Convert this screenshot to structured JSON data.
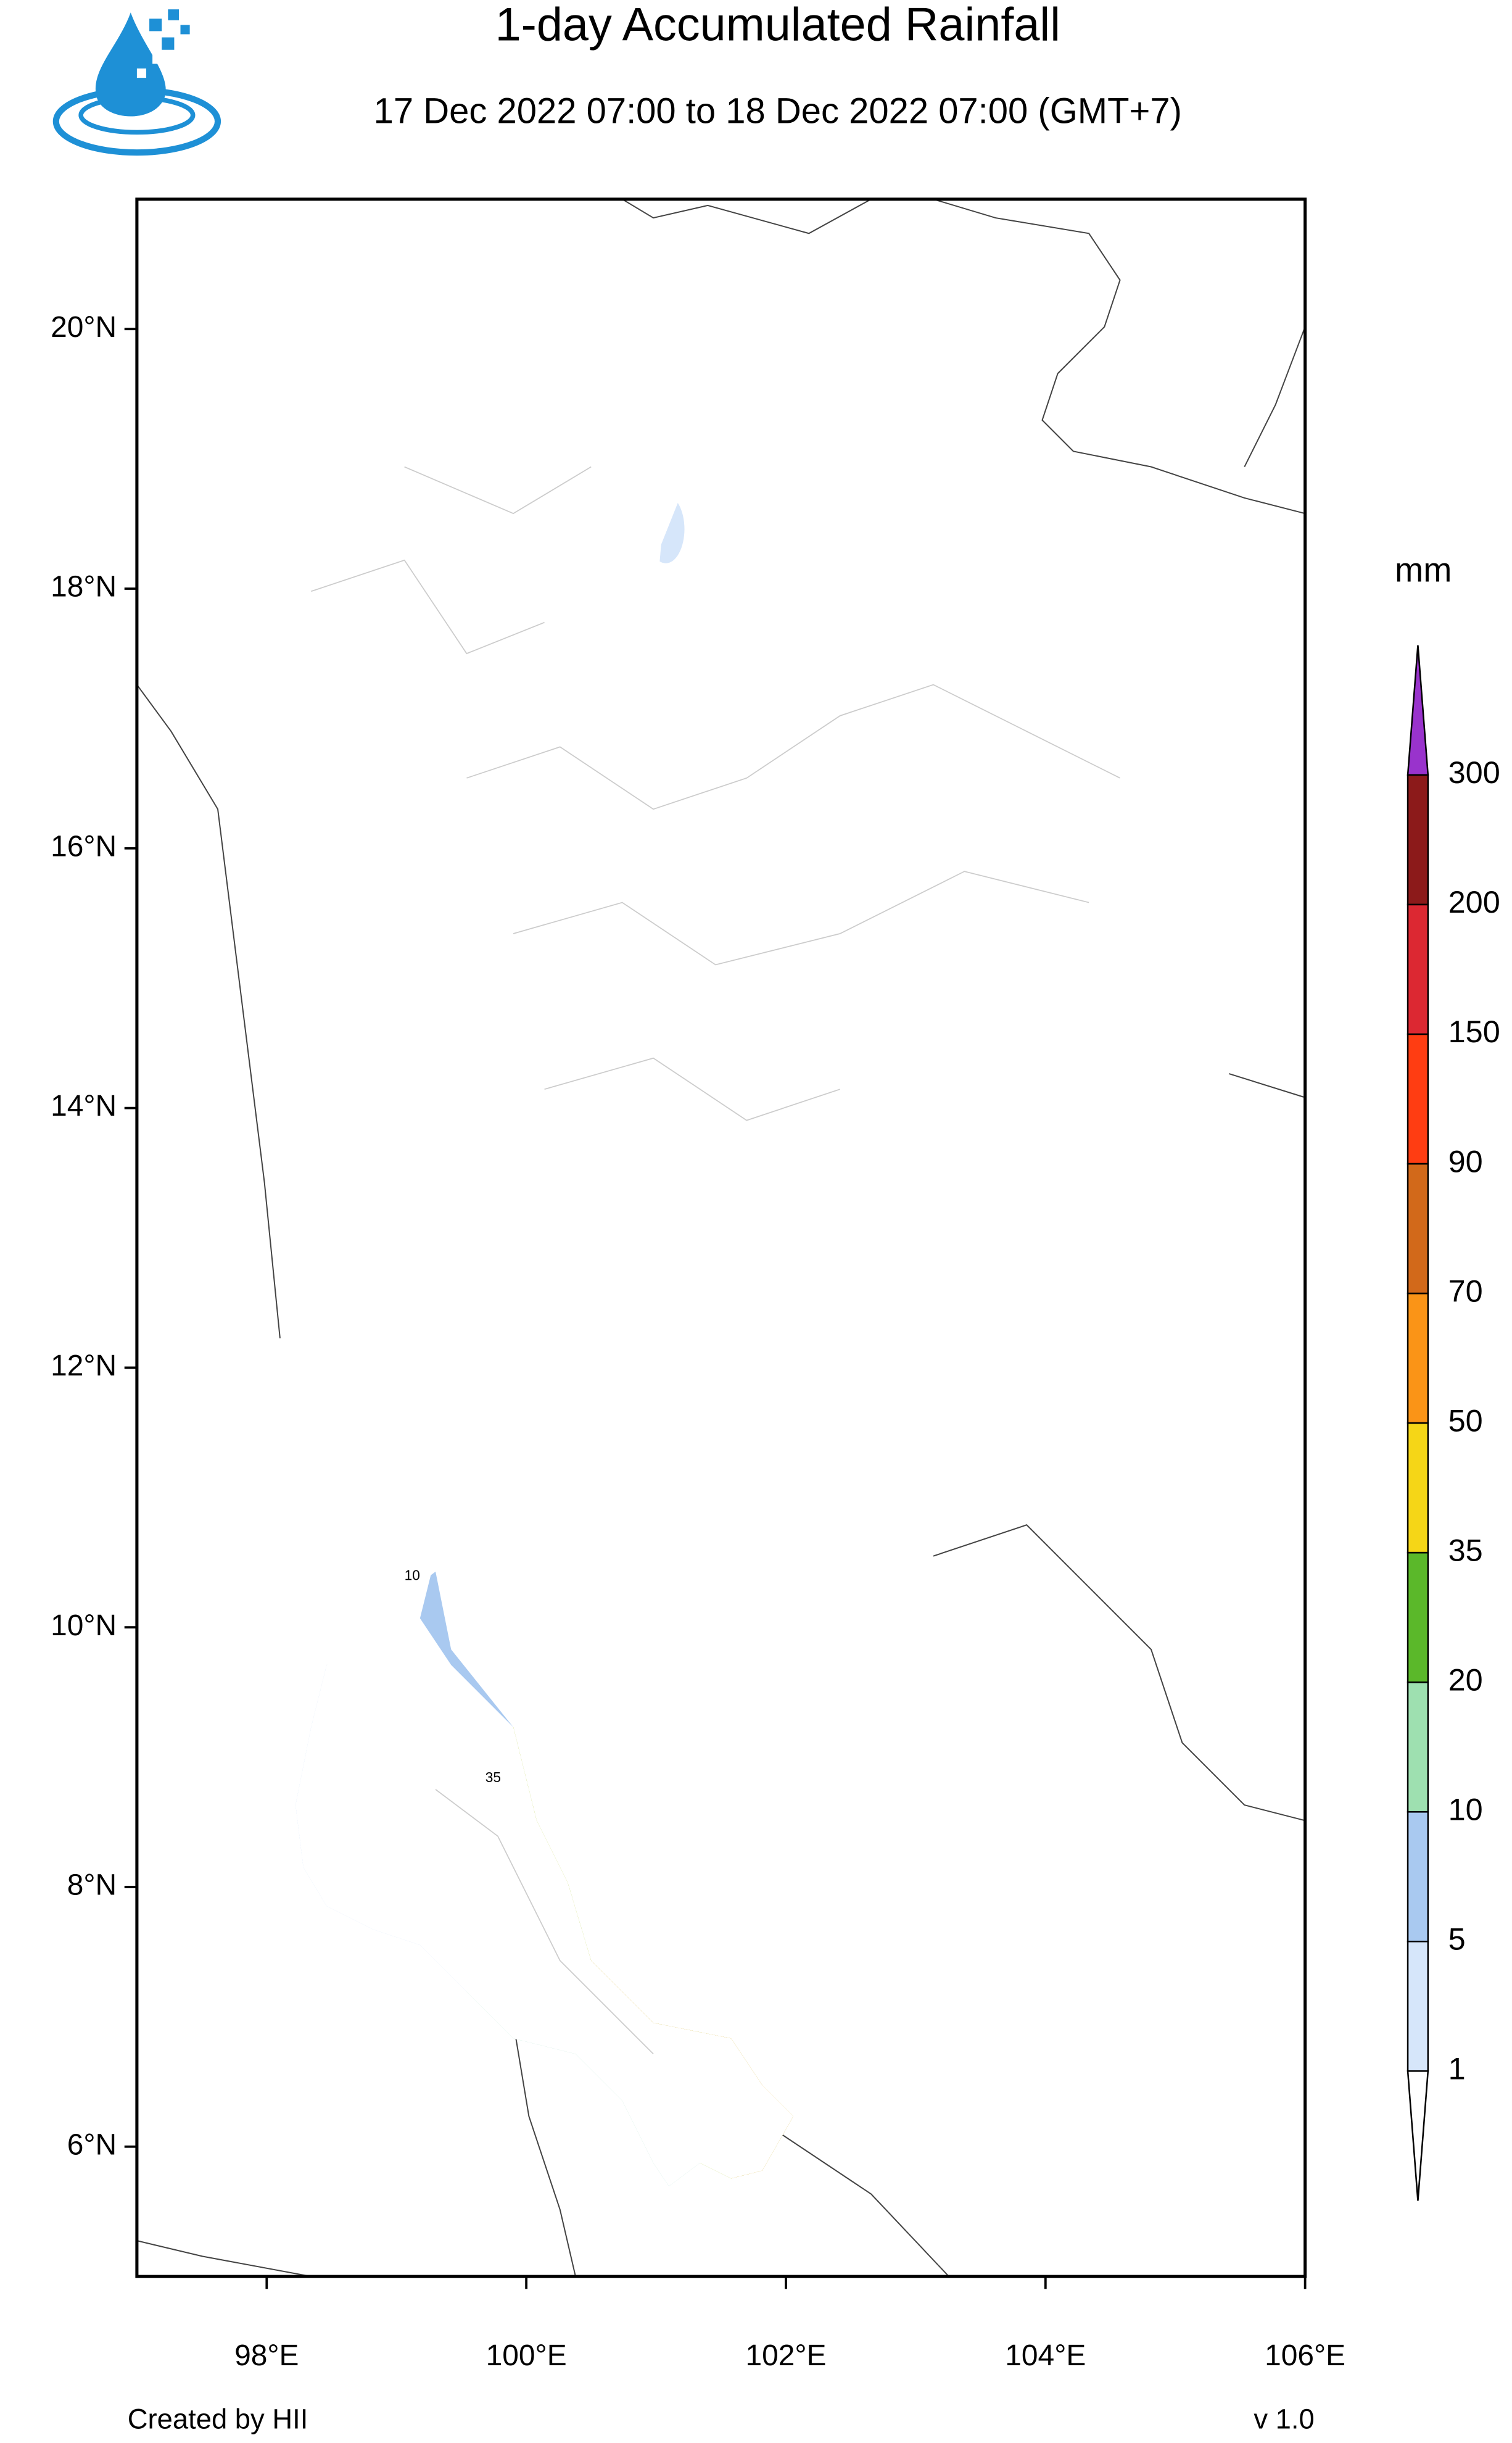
{
  "map": {
    "title": "1-day Accumulated Rainfall",
    "subtitle": "17 Dec 2022 07:00 to 18 Dec 2022 07:00 (GMT+7)",
    "xlim": [
      97,
      106
    ],
    "ylim": [
      5,
      21
    ],
    "xticks": [
      {
        "value": 98,
        "label": "98°E"
      },
      {
        "value": 100,
        "label": "100°E"
      },
      {
        "value": 102,
        "label": "102°E"
      },
      {
        "value": 104,
        "label": "104°E"
      },
      {
        "value": 106,
        "label": "106°E"
      }
    ],
    "yticks": [
      {
        "value": 6,
        "label": "6°N"
      },
      {
        "value": 8,
        "label": "8°N"
      },
      {
        "value": 10,
        "label": "10°N"
      },
      {
        "value": 12,
        "label": "12°N"
      },
      {
        "value": 14,
        "label": "14°N"
      },
      {
        "value": 16,
        "label": "16°N"
      },
      {
        "value": 18,
        "label": "18°N"
      },
      {
        "value": 20,
        "label": "20°N"
      }
    ],
    "colorbar": {
      "unit": "mm",
      "levels": [
        1,
        5,
        10,
        20,
        35,
        50,
        70,
        90,
        150,
        200,
        300
      ],
      "colors": [
        "#ffffff",
        "#d6e6fa",
        "#a9c9f0",
        "#9ee0b0",
        "#5bb82a",
        "#f5d617",
        "#fa9417",
        "#d2691a",
        "#ff3d12",
        "#dc2832",
        "#8c1a1a",
        "#9933cc"
      ]
    },
    "contour_labels": [
      "10",
      "35"
    ],
    "credit": "Created by HII",
    "version": "v 1.0"
  }
}
